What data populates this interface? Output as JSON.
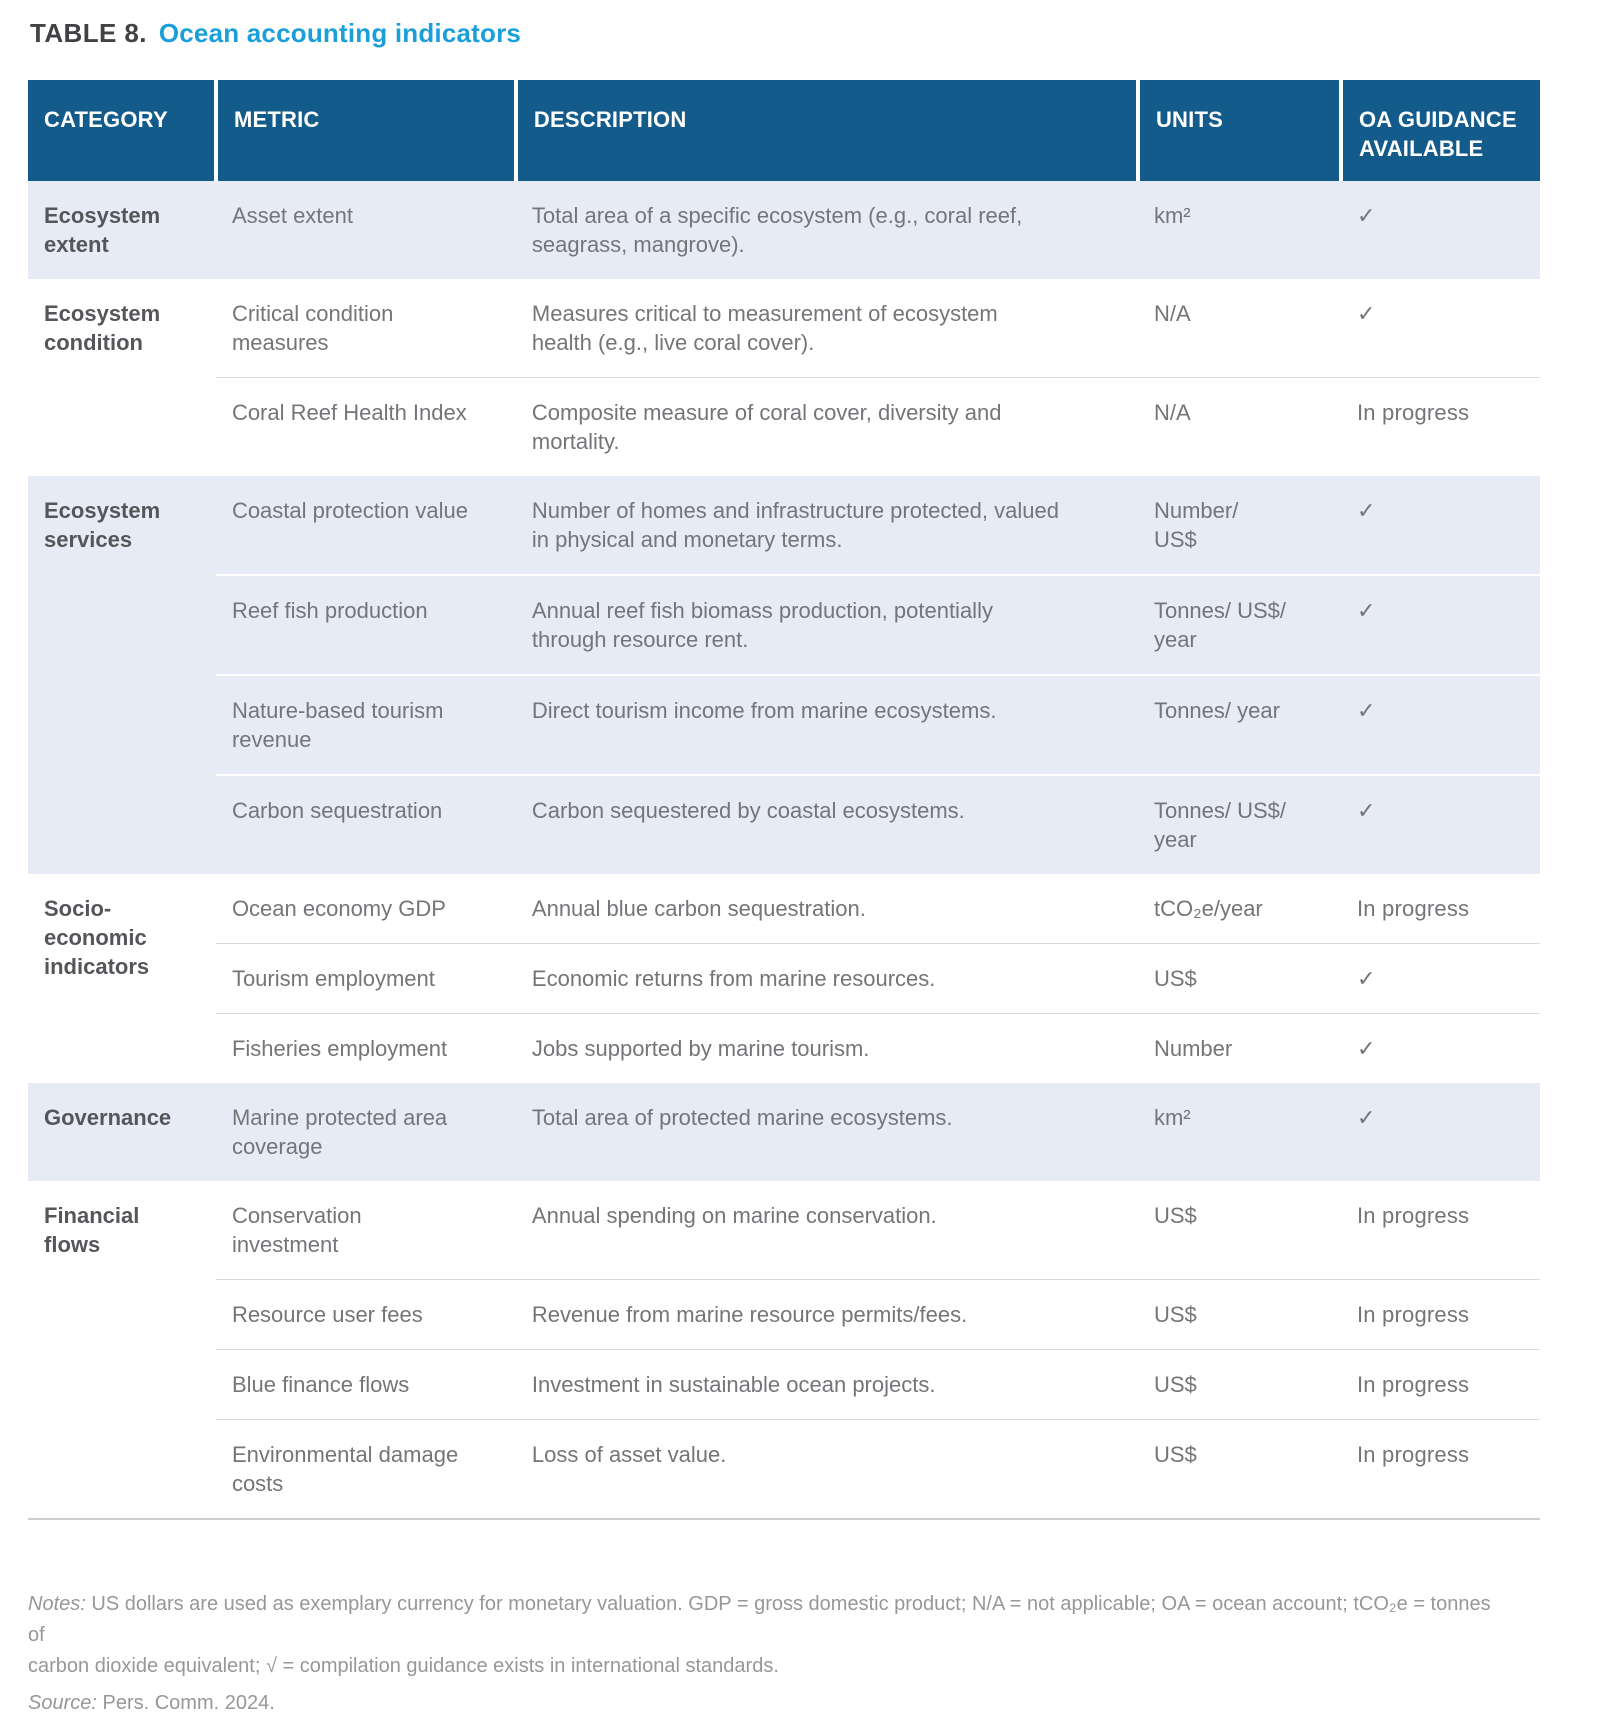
{
  "title": {
    "label": "TABLE 8.",
    "heading": "Ocean accounting indicators"
  },
  "table": {
    "columns": [
      "CATEGORY",
      "METRIC",
      "DESCRIPTION",
      "UNITS",
      "OA GUIDANCE AVAILABLE"
    ],
    "groups": [
      {
        "category": "Ecosystem\nextent",
        "shaded": true,
        "rows": [
          {
            "metric": "Asset extent",
            "description": "Total area of a specific ecosystem (e.g., coral reef,\nseagrass, mangrove).",
            "units": "km²",
            "guidance": "✓"
          }
        ]
      },
      {
        "category": "Ecosystem\ncondition",
        "shaded": false,
        "rows": [
          {
            "metric": "Critical condition\nmeasures",
            "description": "Measures critical to measurement of ecosystem\nhealth (e.g., live coral cover).",
            "units": "N/A",
            "guidance": "✓"
          },
          {
            "metric": "Coral Reef Health Index",
            "description": "Composite measure of coral cover, diversity and\nmortality.",
            "units": "N/A",
            "guidance": "In progress"
          }
        ]
      },
      {
        "category": "Ecosystem\nservices",
        "shaded": true,
        "rows": [
          {
            "metric": "Coastal protection value",
            "description": "Number of homes and infrastructure protected, valued\nin physical and monetary terms.",
            "units": "Number/\nUS$",
            "guidance": "✓"
          },
          {
            "metric": "Reef fish production",
            "description": "Annual reef fish biomass production, potentially\nthrough resource rent.",
            "units": "Tonnes/ US$/\nyear",
            "guidance": "✓"
          },
          {
            "metric": "Nature-based tourism\nrevenue",
            "description": "Direct tourism income from marine ecosystems.",
            "units": "Tonnes/ year",
            "guidance": "✓"
          },
          {
            "metric": "Carbon sequestration",
            "description": "Carbon sequestered by coastal ecosystems.",
            "units": "Tonnes/ US$/\nyear",
            "guidance": "✓"
          }
        ]
      },
      {
        "category": "Socio-\neconomic\nindicators",
        "shaded": false,
        "rows": [
          {
            "metric": "Ocean economy GDP",
            "description": "Annual blue carbon sequestration.",
            "units": "tCO₂e/year",
            "guidance": "In progress"
          },
          {
            "metric": "Tourism employment",
            "description": "Economic returns from marine resources.",
            "units": "US$",
            "guidance": "✓"
          },
          {
            "metric": "Fisheries employment",
            "description": "Jobs supported by marine tourism.",
            "units": "Number",
            "guidance": "✓"
          }
        ]
      },
      {
        "category": "Governance",
        "shaded": true,
        "rows": [
          {
            "metric": "Marine protected area\ncoverage",
            "description": "Total area of protected marine ecosystems.",
            "units": "km²",
            "guidance": "✓"
          }
        ]
      },
      {
        "category": "Financial\nflows",
        "shaded": false,
        "rows": [
          {
            "metric": "Conservation\ninvestment",
            "description": "Annual spending on marine conservation.",
            "units": "US$",
            "guidance": "In progress"
          },
          {
            "metric": "Resource user fees",
            "description": "Revenue from marine resource permits/fees.",
            "units": "US$",
            "guidance": "In progress"
          },
          {
            "metric": "Blue finance flows",
            "description": "Investment in sustainable ocean projects.",
            "units": "US$",
            "guidance": "In progress"
          },
          {
            "metric": "Environmental damage\ncosts",
            "description": "Loss of asset value.",
            "units": "US$",
            "guidance": "In progress"
          }
        ]
      }
    ]
  },
  "footer": {
    "notes_label": "Notes:",
    "notes_text": " US dollars are used as exemplary currency for monetary valuation. GDP = gross domestic product; N/A = not applicable; OA = ocean account; tCO₂e = tonnes of\ncarbon dioxide equivalent; √ = compilation guidance exists in international standards.",
    "source_label": "Source:",
    "source_text": " Pers. Comm. 2024."
  },
  "colors": {
    "header_bg": "#135b8b",
    "row_shaded": "#e7ebf6",
    "title_accent": "#1b9fd9"
  }
}
